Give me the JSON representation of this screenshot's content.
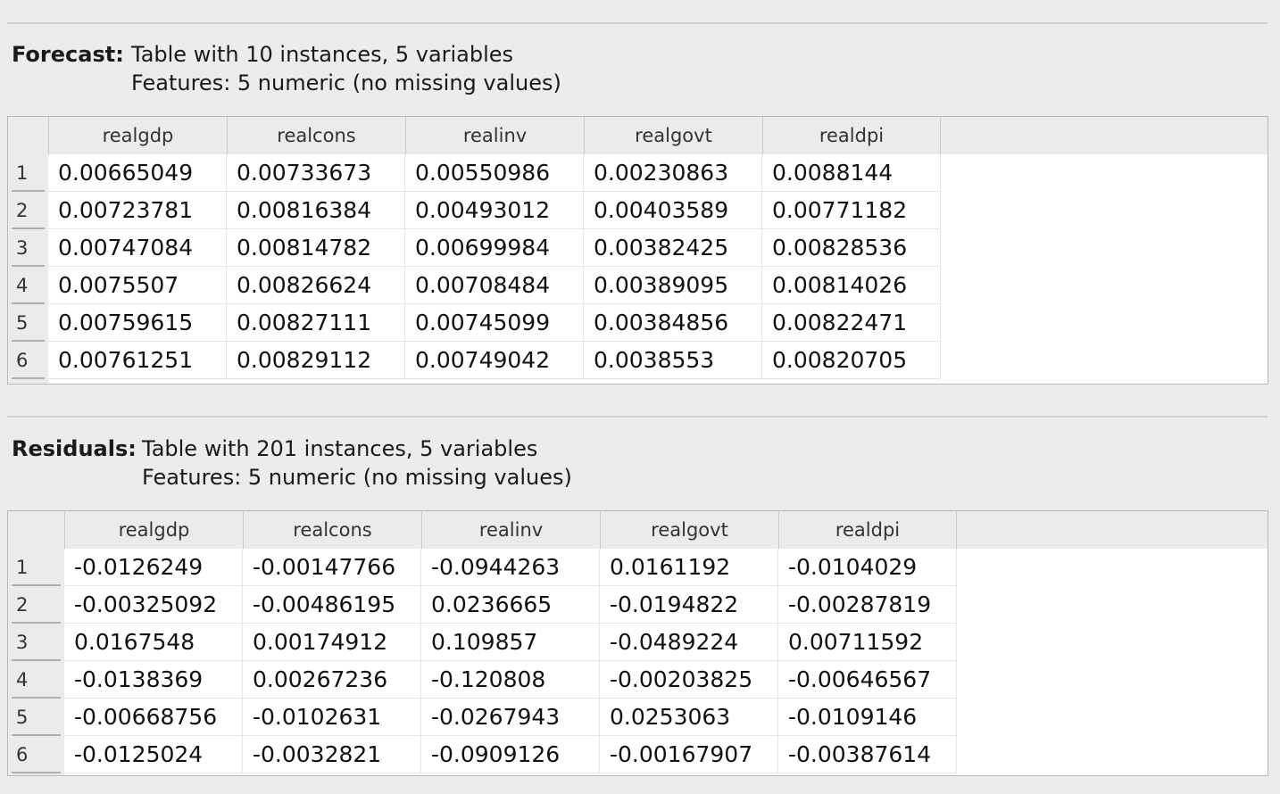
{
  "forecast": {
    "label": "Forecast:",
    "line1": "Table with 10 instances, 5 variables",
    "line2": "Features: 5 numeric (no missing values)",
    "columns": [
      "realgdp",
      "realcons",
      "realinv",
      "realgovt",
      "realdpi"
    ],
    "rows": [
      {
        "index": "1",
        "cells": [
          "0.00665049",
          "0.00733673",
          "0.00550986",
          "0.00230863",
          "0.0088144"
        ]
      },
      {
        "index": "2",
        "cells": [
          "0.00723781",
          "0.00816384",
          "0.00493012",
          "0.00403589",
          "0.00771182"
        ]
      },
      {
        "index": "3",
        "cells": [
          "0.00747084",
          "0.00814782",
          "0.00699984",
          "0.00382425",
          "0.00828536"
        ]
      },
      {
        "index": "4",
        "cells": [
          "0.0075507",
          "0.00826624",
          "0.00708484",
          "0.00389095",
          "0.00814026"
        ]
      },
      {
        "index": "5",
        "cells": [
          "0.00759615",
          "0.00827111",
          "0.00745099",
          "0.00384856",
          "0.00822471"
        ]
      },
      {
        "index": "6",
        "cells": [
          "0.00761251",
          "0.00829112",
          "0.00749042",
          "0.0038553",
          "0.00820705"
        ]
      }
    ]
  },
  "residuals": {
    "label": "Residuals:",
    "line1": "Table with 201 instances, 5 variables",
    "line2": "Features: 5 numeric (no missing values)",
    "columns": [
      "realgdp",
      "realcons",
      "realinv",
      "realgovt",
      "realdpi"
    ],
    "rows": [
      {
        "index": "1",
        "cells": [
          "-0.0126249",
          "-0.00147766",
          "-0.0944263",
          "0.0161192",
          "-0.0104029"
        ]
      },
      {
        "index": "2",
        "cells": [
          "-0.00325092",
          "-0.00486195",
          "0.0236665",
          "-0.0194822",
          "-0.00287819"
        ]
      },
      {
        "index": "3",
        "cells": [
          "0.0167548",
          "0.00174912",
          "0.109857",
          "-0.0489224",
          "0.00711592"
        ]
      },
      {
        "index": "4",
        "cells": [
          "-0.0138369",
          "0.00267236",
          "-0.120808",
          "-0.00203825",
          "-0.00646567"
        ]
      },
      {
        "index": "5",
        "cells": [
          "-0.00668756",
          "-0.0102631",
          "-0.0267943",
          "0.0253063",
          "-0.0109146"
        ]
      },
      {
        "index": "6",
        "cells": [
          "-0.0125024",
          "-0.0032821",
          "-0.0909126",
          "-0.00167907",
          "-0.00387614"
        ]
      }
    ]
  }
}
